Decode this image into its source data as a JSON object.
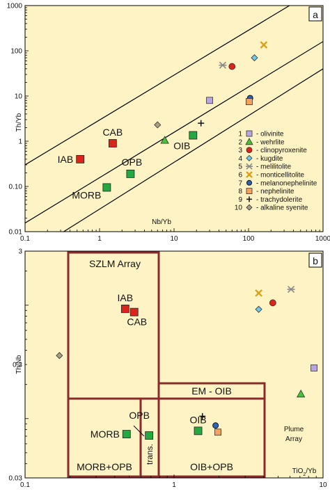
{
  "legend": [
    {
      "num": "1",
      "name": "- olivinite",
      "marker": "square",
      "color": "#b9a6e0"
    },
    {
      "num": "2",
      "name": "- wehrlite",
      "marker": "triangle",
      "color": "#45c23a"
    },
    {
      "num": "3",
      "name": "- clinopyroxenite",
      "marker": "circle",
      "color": "#d8261c"
    },
    {
      "num": "4",
      "name": "- kugdite",
      "marker": "diamond",
      "color": "#6fc8ea"
    },
    {
      "num": "5",
      "name": "- melilitolite",
      "marker": "star",
      "color": "#8a8a8a"
    },
    {
      "num": "6",
      "name": "- monticellitolite",
      "marker": "x",
      "color": "#d9a21b"
    },
    {
      "num": "7",
      "name": "- melanonephelinite",
      "marker": "circle2",
      "color": "#2f63b7"
    },
    {
      "num": "8",
      "name": "- nephelinite",
      "marker": "square",
      "color": "#f5a25e"
    },
    {
      "num": "9",
      "name": "- trachydolerite",
      "marker": "plus",
      "color": "#111111"
    },
    {
      "num": "10",
      "name": "- alkaline syenite",
      "marker": "diamond",
      "color": "#a89e82"
    }
  ],
  "chart_data": [
    {
      "panel": "a",
      "type": "scatter",
      "xlabel": "Nb/Yb",
      "ylabel": "Th/Yb",
      "xscale": "log",
      "yscale": "log",
      "xlim": [
        0.1,
        1000
      ],
      "ylim": [
        0.01,
        1000
      ],
      "xticks": [
        {
          "v": 0.1,
          "t": "0.1"
        },
        {
          "v": 1,
          "t": "1"
        },
        {
          "v": 10,
          "t": "10"
        },
        {
          "v": 100,
          "t": "100"
        },
        {
          "v": 1000,
          "t": "1000"
        }
      ],
      "yticks": [
        {
          "v": 0.01,
          "t": "0.01"
        },
        {
          "v": 0.1,
          "t": "0.10"
        },
        {
          "v": 1,
          "t": "1"
        },
        {
          "v": 10,
          "t": "10"
        },
        {
          "v": 100,
          "t": "100"
        },
        {
          "v": 1000,
          "t": "1000"
        }
      ],
      "lines": [
        [
          [
            0.1,
            0.3
          ],
          [
            1000,
            2800
          ]
        ],
        [
          [
            0.1,
            0.0155
          ],
          [
            1000,
            160
          ]
        ],
        [
          [
            0.33,
            0.01
          ],
          [
            1000,
            40
          ]
        ]
      ],
      "reference_points": [
        {
          "label": "IAB",
          "x": 0.55,
          "y": 0.4,
          "color": "#d8261c"
        },
        {
          "label": "CAB",
          "x": 1.5,
          "y": 0.9,
          "color": "#d8261c"
        },
        {
          "label": "OPB",
          "x": 2.6,
          "y": 0.19,
          "color": "#23a93f"
        },
        {
          "label": "MORB",
          "x": 1.25,
          "y": 0.095,
          "color": "#23a93f"
        },
        {
          "label": "OIB",
          "x": 18,
          "y": 1.35,
          "color": "#23a93f"
        }
      ],
      "samples": [
        {
          "legend": 1,
          "x": 30,
          "y": 8
        },
        {
          "legend": 2,
          "x": 7.5,
          "y": 1.05
        },
        {
          "legend": 3,
          "x": 60,
          "y": 45
        },
        {
          "legend": 4,
          "x": 120,
          "y": 70
        },
        {
          "legend": 5,
          "x": 45,
          "y": 48
        },
        {
          "legend": 6,
          "x": 160,
          "y": 135
        },
        {
          "legend": 7,
          "x": 105,
          "y": 9
        },
        {
          "legend": 8,
          "x": 102,
          "y": 7.5
        },
        {
          "legend": 9,
          "x": 23,
          "y": 2.5
        },
        {
          "legend": 10,
          "x": 6,
          "y": 2.3
        }
      ],
      "panel_label": "a"
    },
    {
      "panel": "b",
      "type": "scatter",
      "xlabel": "TiO2/Yb",
      "ylabel": "Th/Nb",
      "xscale": "log",
      "yscale": "log",
      "xlim": [
        0.1,
        10
      ],
      "ylim": [
        0.03,
        3
      ],
      "xticks": [
        {
          "v": 0.1,
          "t": "0.1"
        },
        {
          "v": 1,
          "t": "1"
        },
        {
          "v": 10,
          "t": "10"
        }
      ],
      "yticks": [
        {
          "v": 0.03,
          "t": "0.03"
        },
        {
          "v": 0.3,
          "t": "0.3"
        },
        {
          "v": 3,
          "t": "3"
        }
      ],
      "fields": [
        {
          "label": "SZLM Array"
        },
        {
          "label": "EM - OIB"
        },
        {
          "label": "MORB+OPB"
        },
        {
          "label": "trans."
        },
        {
          "label": "OIB+OPB"
        },
        {
          "label": "Plume Array"
        }
      ],
      "reference_points": [
        {
          "label": "IAB",
          "x": 0.47,
          "y": 0.93,
          "color": "#d8261c"
        },
        {
          "label": "CAB",
          "x": 0.54,
          "y": 0.87,
          "color": "#d8261c"
        },
        {
          "label": "MORB",
          "x": 0.48,
          "y": 0.073,
          "color": "#23a93f"
        },
        {
          "label": "OPB",
          "x": 0.68,
          "y": 0.071,
          "color": "#23a93f"
        },
        {
          "label": "OIB",
          "x": 1.45,
          "y": 0.078,
          "color": "#23a93f"
        }
      ],
      "samples": [
        {
          "legend": 1,
          "x": 8.7,
          "y": 0.28
        },
        {
          "legend": 2,
          "x": 7.1,
          "y": 0.165
        },
        {
          "legend": 3,
          "x": 4.6,
          "y": 1.05
        },
        {
          "legend": 4,
          "x": 3.7,
          "y": 0.92
        },
        {
          "legend": 5,
          "x": 6.1,
          "y": 1.38
        },
        {
          "legend": 6,
          "x": 3.7,
          "y": 1.28
        },
        {
          "legend": 7,
          "x": 1.9,
          "y": 0.087
        },
        {
          "legend": 8,
          "x": 1.97,
          "y": 0.076
        },
        {
          "legend": 9,
          "x": 1.55,
          "y": 0.105
        },
        {
          "legend": 10,
          "x": 0.17,
          "y": 0.36
        }
      ],
      "panel_label": "b"
    }
  ]
}
